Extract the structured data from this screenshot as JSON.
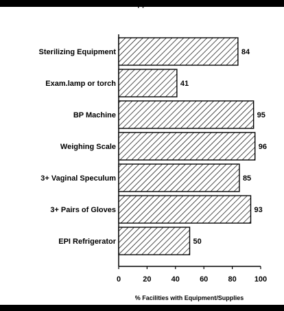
{
  "header_fragment": "pp",
  "chart_data": {
    "type": "bar",
    "orientation": "horizontal",
    "categories": [
      "Sterilizing Equipment",
      "Exam.lamp or torch",
      "BP Machine",
      "Weighing Scale",
      "3+ Vaginal Speculum",
      "3+ Pairs of Gloves",
      "EPI Refrigerator"
    ],
    "values": [
      84,
      41,
      95,
      96,
      85,
      93,
      50
    ],
    "data_labels": [
      "84",
      "41",
      "95",
      "96",
      "85",
      "93",
      "50"
    ],
    "xlabel": "% Facilities with Equipment/Supplies",
    "xlim": [
      0,
      100
    ],
    "xticks": [
      0,
      20,
      40,
      60,
      80,
      100
    ],
    "grid": false,
    "fill_pattern": "diagonal-hatch",
    "bar_color": "#000000"
  }
}
